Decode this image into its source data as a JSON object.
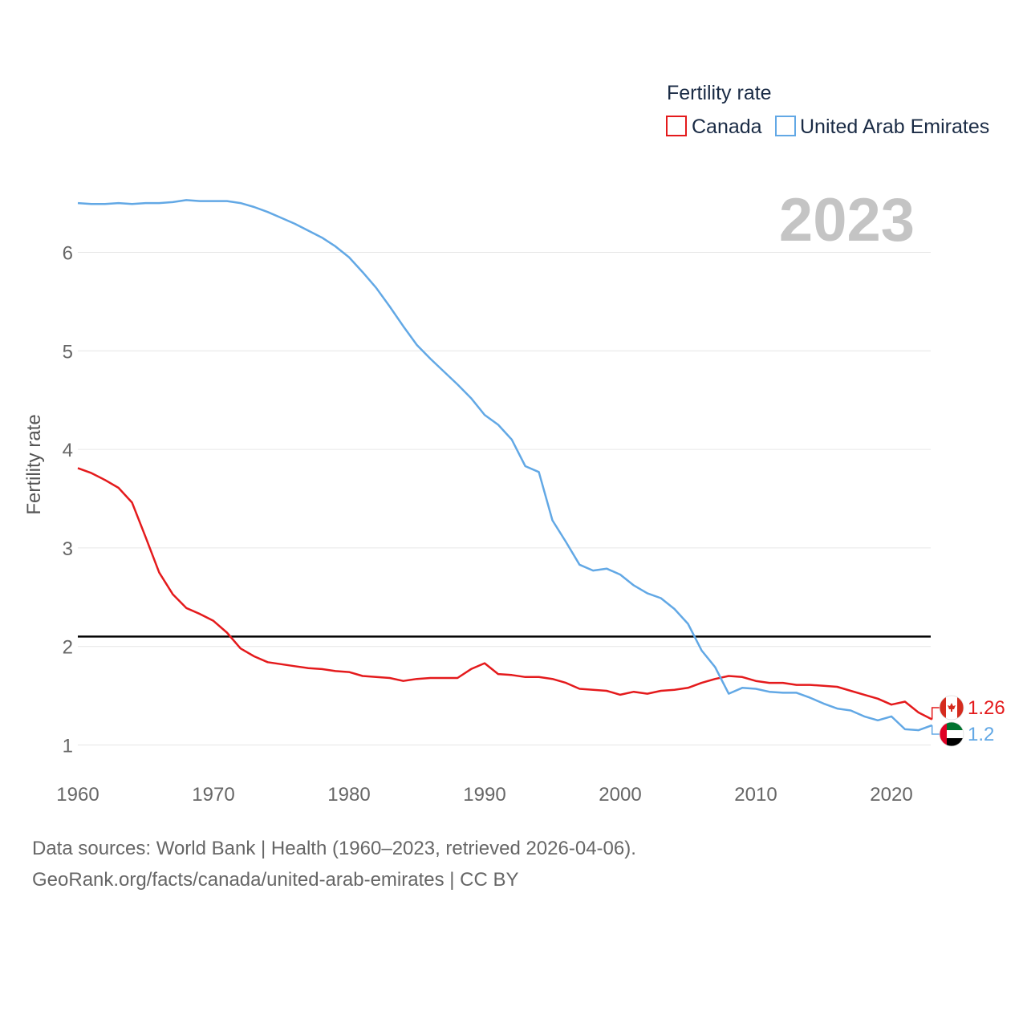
{
  "colors": {
    "canada": "#e41a1c",
    "uae": "#62a8e5",
    "reference_line": "#000000",
    "grid": "#e6e6e6"
  },
  "footer": {
    "line1": "Data sources: World Bank | Health (1960–2023, retrieved 2026-04-06).",
    "line2": "GeoRank.org/facts/canada/united-arab-emirates | CC BY"
  },
  "chart_data": {
    "type": "line",
    "title": "Fertility rate",
    "year_label": "2023",
    "xlabel": "",
    "ylabel": "Fertility rate",
    "xlim": [
      1960,
      2023
    ],
    "ylim": [
      0.8,
      6.8
    ],
    "x_ticks": [
      "1960",
      "1970",
      "1980",
      "1990",
      "2000",
      "2010",
      "2020"
    ],
    "y_ticks": [
      "1",
      "2",
      "3",
      "4",
      "5",
      "6"
    ],
    "reference_line": 2.1,
    "grid": true,
    "legend_position": "top-right",
    "x": [
      1960,
      1961,
      1962,
      1963,
      1964,
      1965,
      1966,
      1967,
      1968,
      1969,
      1970,
      1971,
      1972,
      1973,
      1974,
      1975,
      1976,
      1977,
      1978,
      1979,
      1980,
      1981,
      1982,
      1983,
      1984,
      1985,
      1986,
      1987,
      1988,
      1989,
      1990,
      1991,
      1992,
      1993,
      1994,
      1995,
      1996,
      1997,
      1998,
      1999,
      2000,
      2001,
      2002,
      2003,
      2004,
      2005,
      2006,
      2007,
      2008,
      2009,
      2010,
      2011,
      2012,
      2013,
      2014,
      2015,
      2016,
      2017,
      2018,
      2019,
      2020,
      2021,
      2022,
      2023
    ],
    "series": [
      {
        "name": "Canada",
        "flag": "canada-flag",
        "end_label": "1.26",
        "values": [
          3.81,
          3.76,
          3.69,
          3.61,
          3.46,
          3.11,
          2.75,
          2.53,
          2.39,
          2.33,
          2.26,
          2.14,
          1.98,
          1.9,
          1.84,
          1.82,
          1.8,
          1.78,
          1.77,
          1.75,
          1.74,
          1.7,
          1.69,
          1.68,
          1.65,
          1.67,
          1.68,
          1.68,
          1.68,
          1.77,
          1.83,
          1.72,
          1.71,
          1.69,
          1.69,
          1.67,
          1.63,
          1.57,
          1.56,
          1.55,
          1.51,
          1.54,
          1.52,
          1.55,
          1.56,
          1.58,
          1.63,
          1.67,
          1.7,
          1.69,
          1.65,
          1.63,
          1.63,
          1.61,
          1.61,
          1.6,
          1.59,
          1.55,
          1.51,
          1.47,
          1.41,
          1.44,
          1.33,
          1.26
        ]
      },
      {
        "name": "United Arab Emirates",
        "flag": "uae-flag",
        "end_label": "1.2",
        "values": [
          6.5,
          6.49,
          6.49,
          6.5,
          6.49,
          6.5,
          6.5,
          6.51,
          6.53,
          6.52,
          6.52,
          6.52,
          6.5,
          6.46,
          6.41,
          6.35,
          6.29,
          6.22,
          6.15,
          6.06,
          5.95,
          5.8,
          5.64,
          5.45,
          5.25,
          5.06,
          4.92,
          4.79,
          4.66,
          4.52,
          4.35,
          4.25,
          4.1,
          3.83,
          3.77,
          3.28,
          3.06,
          2.83,
          2.77,
          2.79,
          2.73,
          2.62,
          2.54,
          2.49,
          2.38,
          2.23,
          1.96,
          1.79,
          1.52,
          1.58,
          1.57,
          1.54,
          1.53,
          1.53,
          1.48,
          1.42,
          1.37,
          1.35,
          1.29,
          1.25,
          1.29,
          1.16,
          1.15,
          1.2
        ]
      }
    ]
  }
}
